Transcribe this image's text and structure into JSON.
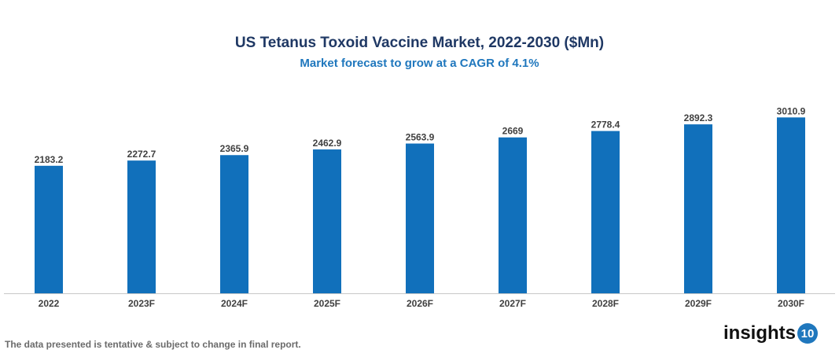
{
  "chart_data": {
    "type": "bar",
    "title": "US Tetanus Toxoid Vaccine Market, 2022-2030 ($Mn)",
    "subtitle": "Market forecast to grow at a CAGR of 4.1%",
    "categories": [
      "2022",
      "2023F",
      "2024F",
      "2025F",
      "2026F",
      "2027F",
      "2028F",
      "2029F",
      "2030F"
    ],
    "values": [
      2183.2,
      2272.7,
      2365.9,
      2462.9,
      2563.9,
      2669,
      2778.4,
      2892.3,
      3010.9
    ],
    "data_labels": [
      "2183.2",
      "2272.7",
      "2365.9",
      "2462.9",
      "2563.9",
      "2669",
      "2778.4",
      "2892.3",
      "3010.9"
    ],
    "xlabel": "",
    "ylabel": "",
    "ylim": [
      0,
      3500
    ],
    "grid": false,
    "y_axis_visible": false,
    "bar_color": "#1170bb"
  },
  "footer": {
    "note": "The data presented is tentative & subject to change in final report.",
    "logo_text": "insights",
    "logo_badge": "10"
  }
}
